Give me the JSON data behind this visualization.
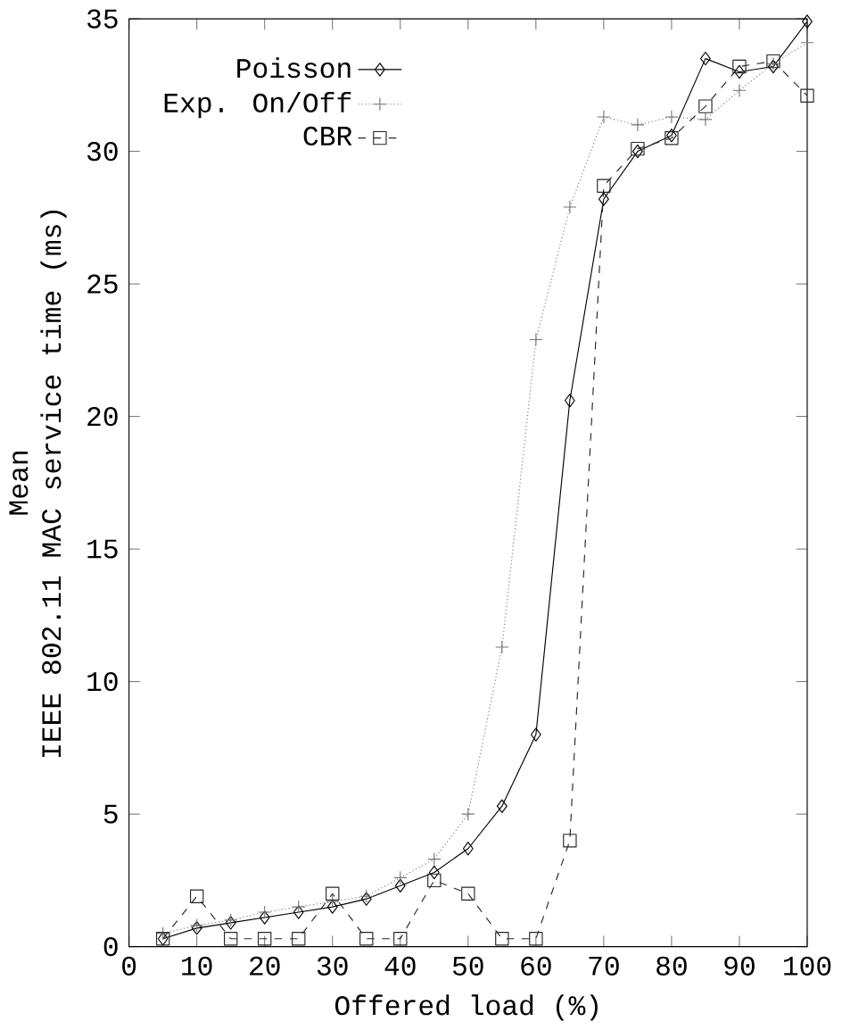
{
  "chart_data": {
    "type": "line",
    "xlabel": "Offered load (%)",
    "ylabel": "Mean\nIEEE 802.11 MAC service time (ms)",
    "x": [
      5,
      10,
      15,
      20,
      25,
      30,
      35,
      40,
      45,
      50,
      55,
      60,
      65,
      70,
      75,
      80,
      85,
      90,
      95,
      100
    ],
    "series": [
      {
        "name": "Poisson",
        "color": "#000000",
        "marker": "diamond",
        "line_style": "solid",
        "values": [
          0.3,
          0.7,
          0.9,
          1.1,
          1.3,
          1.5,
          1.8,
          2.3,
          2.8,
          3.7,
          5.3,
          8.0,
          20.6,
          28.2,
          30.0,
          30.6,
          33.5,
          33.0,
          33.2,
          34.9
        ]
      },
      {
        "name": "Exp. On/Off",
        "color": "#777777",
        "marker": "cross",
        "line_style": "dotted",
        "values": [
          0.5,
          0.8,
          1.0,
          1.3,
          1.5,
          1.7,
          1.9,
          2.6,
          3.3,
          5.0,
          11.3,
          22.9,
          27.9,
          31.3,
          31.0,
          31.3,
          31.2,
          32.3,
          33.3,
          34.1
        ]
      },
      {
        "name": "CBR",
        "color": "#262626",
        "marker": "square",
        "line_style": "dashed",
        "values": [
          0.3,
          1.9,
          0.3,
          0.3,
          0.3,
          2.0,
          0.3,
          0.3,
          2.5,
          2.0,
          0.3,
          0.3,
          4.0,
          28.7,
          30.1,
          30.5,
          31.7,
          33.2,
          33.4,
          32.1
        ]
      }
    ],
    "xlim": [
      0,
      100
    ],
    "ylim": [
      0,
      35
    ],
    "xticks": [
      0,
      10,
      20,
      30,
      40,
      50,
      60,
      70,
      80,
      90,
      100
    ],
    "yticks": [
      0,
      5,
      10,
      15,
      20,
      25,
      30,
      35
    ],
    "grid": false,
    "legend": "top left"
  }
}
